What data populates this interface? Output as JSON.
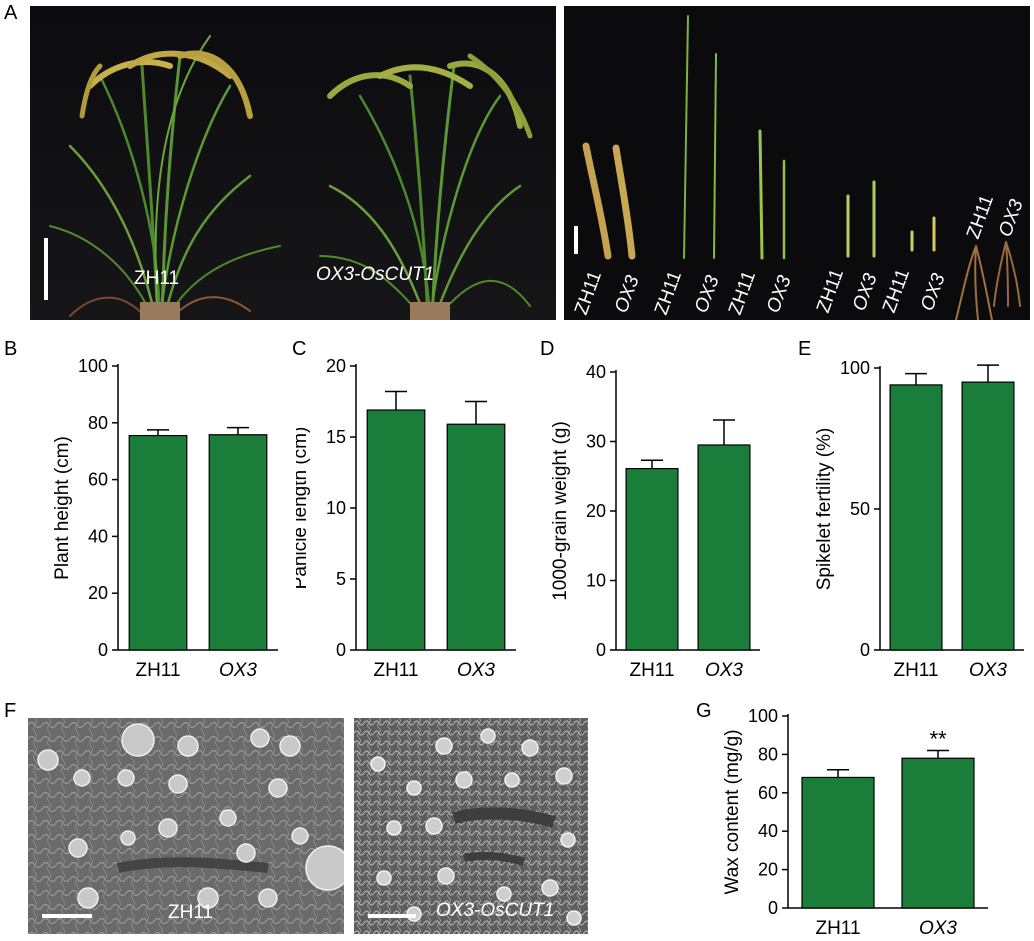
{
  "panels": {
    "A": "A",
    "B": "B",
    "C": "C",
    "D": "D",
    "E": "E",
    "F": "F",
    "G": "G"
  },
  "photo_a_left": {
    "label_wt": "ZH11",
    "label_ox": "OX3-OsCUT1"
  },
  "photo_a_right": {
    "pair_labels": [
      {
        "wt": "ZH11",
        "ox": "OX3"
      },
      {
        "wt": "ZH11",
        "ox": "OX3"
      },
      {
        "wt": "ZH11",
        "ox": "OX3"
      },
      {
        "wt": "ZH11",
        "ox": "OX3"
      },
      {
        "wt": "ZH11",
        "ox": "OX3"
      },
      {
        "wt": "ZH11",
        "ox": "OX3"
      }
    ]
  },
  "photo_f": {
    "label_wt": "ZH11",
    "label_ox": "OX3-OsCUT1"
  },
  "colors": {
    "bar": "#1b7d3a",
    "plant_bg": "#0b0b0e"
  },
  "chart_data": [
    {
      "id": "B",
      "type": "bar",
      "categories": [
        "ZH11",
        "OX3"
      ],
      "italic": [
        false,
        true
      ],
      "values": [
        75.5,
        75.8
      ],
      "errors": [
        2.0,
        2.5
      ],
      "ylabel": "Plant height (cm)",
      "ylim": [
        0,
        100
      ],
      "ticks": [
        0,
        20,
        40,
        60,
        80,
        100
      ],
      "sig": [
        "",
        ""
      ]
    },
    {
      "id": "C",
      "type": "bar",
      "categories": [
        "ZH11",
        "OX3"
      ],
      "italic": [
        false,
        true
      ],
      "values": [
        16.9,
        15.9
      ],
      "errors": [
        1.3,
        1.6
      ],
      "ylabel": "Panicle length (cm)",
      "ylim": [
        0,
        20
      ],
      "ticks": [
        0,
        5,
        10,
        15,
        20
      ],
      "sig": [
        "",
        ""
      ]
    },
    {
      "id": "D",
      "type": "bar",
      "categories": [
        "ZH11",
        "OX3"
      ],
      "italic": [
        false,
        true
      ],
      "values": [
        26.1,
        29.5
      ],
      "errors": [
        1.2,
        3.6
      ],
      "ylabel": "1000-grain weight (g)",
      "ylim": [
        0,
        40
      ],
      "ticks": [
        0,
        10,
        20,
        30,
        40
      ],
      "sig": [
        "",
        ""
      ]
    },
    {
      "id": "E",
      "type": "bar",
      "categories": [
        "ZH11",
        "OX3"
      ],
      "italic": [
        false,
        true
      ],
      "values": [
        94,
        95
      ],
      "errors": [
        4,
        6
      ],
      "ylabel": "Spikelet fertility (%)",
      "ylim": [
        0,
        100
      ],
      "ticks": [
        0,
        50,
        100
      ],
      "sig": [
        "",
        ""
      ]
    },
    {
      "id": "G",
      "type": "bar",
      "categories": [
        "ZH11",
        "OX3"
      ],
      "italic": [
        false,
        true
      ],
      "values": [
        68,
        78
      ],
      "errors": [
        4,
        4
      ],
      "ylabel": "Wax content (mg/g)",
      "ylim": [
        0,
        100
      ],
      "ticks": [
        0,
        20,
        40,
        60,
        80,
        100
      ],
      "sig": [
        "",
        "**"
      ]
    }
  ]
}
